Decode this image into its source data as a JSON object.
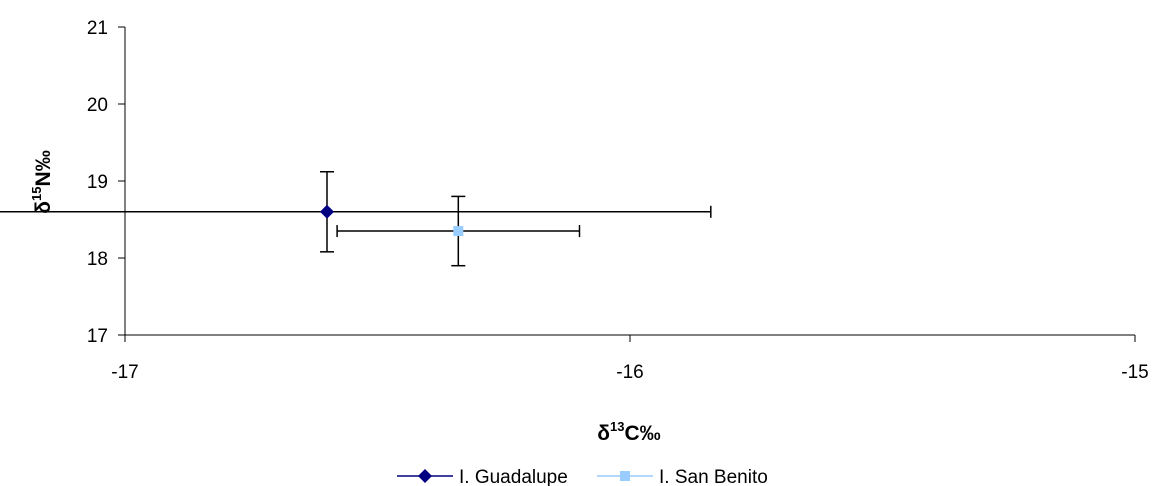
{
  "chart_data": {
    "type": "scatter",
    "xlabel": {
      "prefix": "δ",
      "sup": "13",
      "main": "C‰"
    },
    "ylabel": {
      "prefix": "δ",
      "sup": "15",
      "main": "N‰"
    },
    "xlim": [
      -17,
      -15
    ],
    "ylim": [
      17,
      21
    ],
    "x_ticks": [
      -17,
      -16,
      -15
    ],
    "y_ticks": [
      17,
      18,
      19,
      20,
      21
    ],
    "x_tick_labels": [
      "-17",
      "-16",
      "-15"
    ],
    "y_tick_labels": [
      "17",
      "18",
      "19",
      "20",
      "21"
    ],
    "grid": false,
    "legend_position": "bottom",
    "series": [
      {
        "name": "I. Guadalupe",
        "marker": "diamond",
        "color": "#000080",
        "points": [
          {
            "x": -16.6,
            "y": 18.6,
            "x_err": 0.76,
            "y_err": 0.52
          }
        ]
      },
      {
        "name": "I. San Benito",
        "marker": "square",
        "color": "#99ccff",
        "points": [
          {
            "x": -16.34,
            "y": 18.35,
            "x_err": 0.24,
            "y_err": 0.45
          }
        ]
      }
    ]
  }
}
